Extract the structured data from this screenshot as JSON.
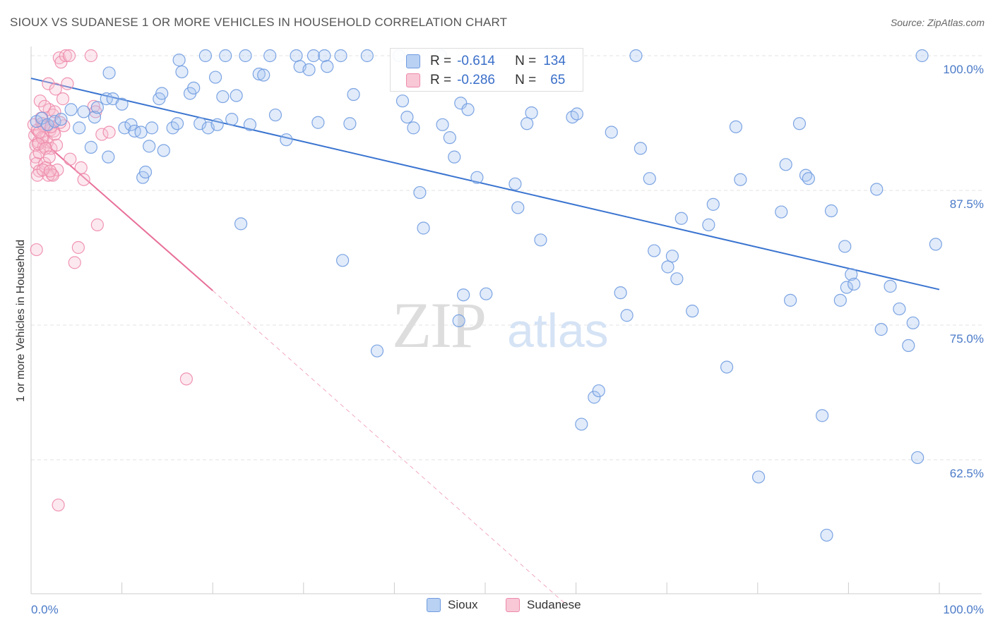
{
  "title": "SIOUX VS SUDANESE 1 OR MORE VEHICLES IN HOUSEHOLD CORRELATION CHART",
  "source": "Source: ZipAtlas.com",
  "watermark": {
    "zip": "ZIP",
    "atlas": "atlas"
  },
  "colors": {
    "sioux": "#6f9be0",
    "sioux_fill": "#a9c6f0",
    "sudanese": "#ee8aaa",
    "sudanese_fill": "#f6bfd0",
    "sioux_line": "#3a74d0",
    "sudanese_line": "#e8709a",
    "tick_text": "#4a7ac8"
  },
  "stats": {
    "sioux": {
      "r_label": "R =",
      "r": "-0.614",
      "n_label": "N =",
      "n": "134"
    },
    "sudanese": {
      "r_label": "R =",
      "r": "-0.286",
      "n_label": "N =",
      "n": "65"
    }
  },
  "chart_data": {
    "type": "scatter",
    "title": "SIOUX VS SUDANESE 1 OR MORE VEHICLES IN HOUSEHOLD CORRELATION CHART",
    "xlabel": "",
    "ylabel": "1 or more Vehicles in Household",
    "xlim": [
      0,
      100
    ],
    "ylim": [
      52.5,
      101.5
    ],
    "x_tick_labels": [
      "0.0%",
      "100.0%"
    ],
    "y_ticks": [
      62.5,
      75.0,
      87.5,
      100.0
    ],
    "y_tick_labels": [
      "62.5%",
      "75.0%",
      "87.5%",
      "100.0%"
    ],
    "grid": true,
    "legend": "bottom-center",
    "series": [
      {
        "name": "Sioux",
        "trend": {
          "x": [
            0,
            100
          ],
          "y": [
            97.9,
            78.3
          ]
        },
        "points": [
          [
            0.6,
            93.9
          ],
          [
            1.2,
            94.2
          ],
          [
            1.8,
            93.6
          ],
          [
            2.6,
            93.9
          ],
          [
            3.3,
            94.1
          ],
          [
            4.4,
            95.0
          ],
          [
            5.3,
            93.3
          ],
          [
            5.8,
            94.8
          ],
          [
            6.6,
            91.5
          ],
          [
            7.0,
            94.3
          ],
          [
            7.3,
            95.2
          ],
          [
            8.3,
            96.0
          ],
          [
            8.5,
            90.6
          ],
          [
            8.6,
            98.4
          ],
          [
            9.0,
            96.0
          ],
          [
            10.0,
            95.5
          ],
          [
            10.3,
            93.3
          ],
          [
            11.0,
            93.6
          ],
          [
            11.4,
            93.0
          ],
          [
            12.1,
            92.9
          ],
          [
            12.3,
            88.7
          ],
          [
            12.6,
            89.2
          ],
          [
            13.0,
            91.6
          ],
          [
            13.3,
            93.3
          ],
          [
            14.1,
            96.0
          ],
          [
            14.4,
            96.5
          ],
          [
            14.6,
            91.2
          ],
          [
            15.6,
            93.3
          ],
          [
            16.1,
            93.7
          ],
          [
            16.3,
            99.6
          ],
          [
            16.6,
            98.5
          ],
          [
            17.5,
            96.5
          ],
          [
            17.9,
            97.0
          ],
          [
            18.6,
            93.7
          ],
          [
            19.2,
            100.0
          ],
          [
            19.5,
            93.3
          ],
          [
            20.3,
            98.0
          ],
          [
            20.5,
            93.6
          ],
          [
            21.1,
            96.2
          ],
          [
            21.4,
            100.0
          ],
          [
            22.1,
            94.1
          ],
          [
            22.6,
            96.3
          ],
          [
            23.1,
            84.4
          ],
          [
            23.6,
            100.0
          ],
          [
            24.1,
            93.6
          ],
          [
            25.1,
            98.3
          ],
          [
            25.6,
            98.2
          ],
          [
            26.3,
            100.0
          ],
          [
            26.9,
            94.5
          ],
          [
            28.1,
            92.2
          ],
          [
            29.2,
            100.0
          ],
          [
            29.6,
            99.0
          ],
          [
            30.6,
            98.7
          ],
          [
            31.1,
            100.0
          ],
          [
            31.6,
            93.8
          ],
          [
            32.3,
            100.0
          ],
          [
            32.6,
            99.0
          ],
          [
            34.1,
            100.0
          ],
          [
            34.3,
            81.0
          ],
          [
            35.1,
            93.7
          ],
          [
            35.5,
            96.4
          ],
          [
            37.0,
            100.0
          ],
          [
            38.1,
            72.6
          ],
          [
            40.5,
            100.0
          ],
          [
            40.9,
            95.8
          ],
          [
            41.4,
            94.3
          ],
          [
            42.1,
            93.3
          ],
          [
            42.8,
            87.3
          ],
          [
            43.2,
            84.0
          ],
          [
            45.1,
            100.0
          ],
          [
            45.3,
            93.6
          ],
          [
            46.1,
            92.4
          ],
          [
            46.6,
            90.6
          ],
          [
            47.1,
            75.4
          ],
          [
            47.3,
            95.6
          ],
          [
            47.6,
            77.8
          ],
          [
            48.1,
            95.0
          ],
          [
            49.1,
            88.7
          ],
          [
            50.1,
            77.9
          ],
          [
            53.3,
            88.1
          ],
          [
            53.6,
            85.9
          ],
          [
            54.6,
            93.7
          ],
          [
            55.1,
            94.7
          ],
          [
            56.1,
            82.9
          ],
          [
            59.6,
            94.3
          ],
          [
            60.1,
            94.6
          ],
          [
            60.6,
            65.8
          ],
          [
            62.0,
            68.3
          ],
          [
            62.5,
            68.9
          ],
          [
            63.9,
            92.9
          ],
          [
            64.9,
            78.0
          ],
          [
            65.6,
            75.9
          ],
          [
            66.6,
            100.0
          ],
          [
            67.1,
            91.4
          ],
          [
            68.1,
            88.6
          ],
          [
            68.6,
            81.9
          ],
          [
            70.1,
            80.4
          ],
          [
            70.6,
            81.4
          ],
          [
            71.1,
            79.3
          ],
          [
            71.6,
            84.9
          ],
          [
            72.8,
            76.3
          ],
          [
            74.6,
            84.3
          ],
          [
            75.1,
            86.2
          ],
          [
            76.6,
            71.1
          ],
          [
            77.6,
            93.4
          ],
          [
            78.1,
            88.5
          ],
          [
            80.1,
            60.9
          ],
          [
            82.6,
            85.5
          ],
          [
            83.1,
            89.9
          ],
          [
            83.6,
            77.3
          ],
          [
            84.6,
            93.7
          ],
          [
            85.3,
            88.9
          ],
          [
            85.6,
            88.6
          ],
          [
            87.1,
            66.6
          ],
          [
            87.6,
            55.5
          ],
          [
            88.1,
            85.6
          ],
          [
            89.1,
            77.3
          ],
          [
            89.6,
            82.3
          ],
          [
            89.8,
            78.5
          ],
          [
            90.3,
            79.7
          ],
          [
            90.6,
            78.8
          ],
          [
            93.1,
            87.6
          ],
          [
            93.6,
            74.6
          ],
          [
            94.6,
            78.6
          ],
          [
            95.6,
            76.5
          ],
          [
            96.6,
            73.1
          ],
          [
            97.1,
            75.2
          ],
          [
            97.6,
            62.7
          ],
          [
            98.1,
            100.0
          ],
          [
            99.6,
            82.5
          ]
        ]
      },
      {
        "name": "Sudanese",
        "trend": {
          "x": [
            0,
            20,
            59
          ],
          "y": [
            93.0,
            78.2,
            49.0
          ]
        },
        "points": [
          [
            0.3,
            93.6
          ],
          [
            0.4,
            92.6
          ],
          [
            0.5,
            91.7
          ],
          [
            0.5,
            90.6
          ],
          [
            0.6,
            90.0
          ],
          [
            0.6,
            82.0
          ],
          [
            0.7,
            93.1
          ],
          [
            0.8,
            92.0
          ],
          [
            0.9,
            91.0
          ],
          [
            0.9,
            89.3
          ],
          [
            1.0,
            95.8
          ],
          [
            1.1,
            94.2
          ],
          [
            1.2,
            93.7
          ],
          [
            1.3,
            92.3
          ],
          [
            1.4,
            91.6
          ],
          [
            1.5,
            90.0
          ],
          [
            1.6,
            89.6
          ],
          [
            1.7,
            93.4
          ],
          [
            1.8,
            92.0
          ],
          [
            1.9,
            97.4
          ],
          [
            2.0,
            95.0
          ],
          [
            2.1,
            93.1
          ],
          [
            2.2,
            91.4
          ],
          [
            2.3,
            89.0
          ],
          [
            2.4,
            94.5
          ],
          [
            2.5,
            93.0
          ],
          [
            2.6,
            92.7
          ],
          [
            2.7,
            96.9
          ],
          [
            2.8,
            91.7
          ],
          [
            2.9,
            89.4
          ],
          [
            3.0,
            58.3
          ],
          [
            3.1,
            99.8
          ],
          [
            3.3,
            99.4
          ],
          [
            3.5,
            96.0
          ],
          [
            3.6,
            93.5
          ],
          [
            3.8,
            100.0
          ],
          [
            4.0,
            97.4
          ],
          [
            4.2,
            100.0
          ],
          [
            4.3,
            90.4
          ],
          [
            4.8,
            80.8
          ],
          [
            5.2,
            82.2
          ],
          [
            5.5,
            89.6
          ],
          [
            5.8,
            88.5
          ],
          [
            6.6,
            100.0
          ],
          [
            6.9,
            95.3
          ],
          [
            7.1,
            94.8
          ],
          [
            7.3,
            84.3
          ],
          [
            7.8,
            92.7
          ],
          [
            0.7,
            88.9
          ],
          [
            1.9,
            88.9
          ],
          [
            2.4,
            88.9
          ],
          [
            1.4,
            93.5
          ],
          [
            2.2,
            93.4
          ],
          [
            1.2,
            92.4
          ],
          [
            0.8,
            91.8
          ],
          [
            1.6,
            91.4
          ],
          [
            1.3,
            89.4
          ],
          [
            2.0,
            90.6
          ],
          [
            17.1,
            70.0
          ],
          [
            8.6,
            92.9
          ],
          [
            0.9,
            92.9
          ],
          [
            1.5,
            95.3
          ],
          [
            2.6,
            94.8
          ],
          [
            3.2,
            93.8
          ],
          [
            2.1,
            89.3
          ]
        ]
      }
    ]
  }
}
